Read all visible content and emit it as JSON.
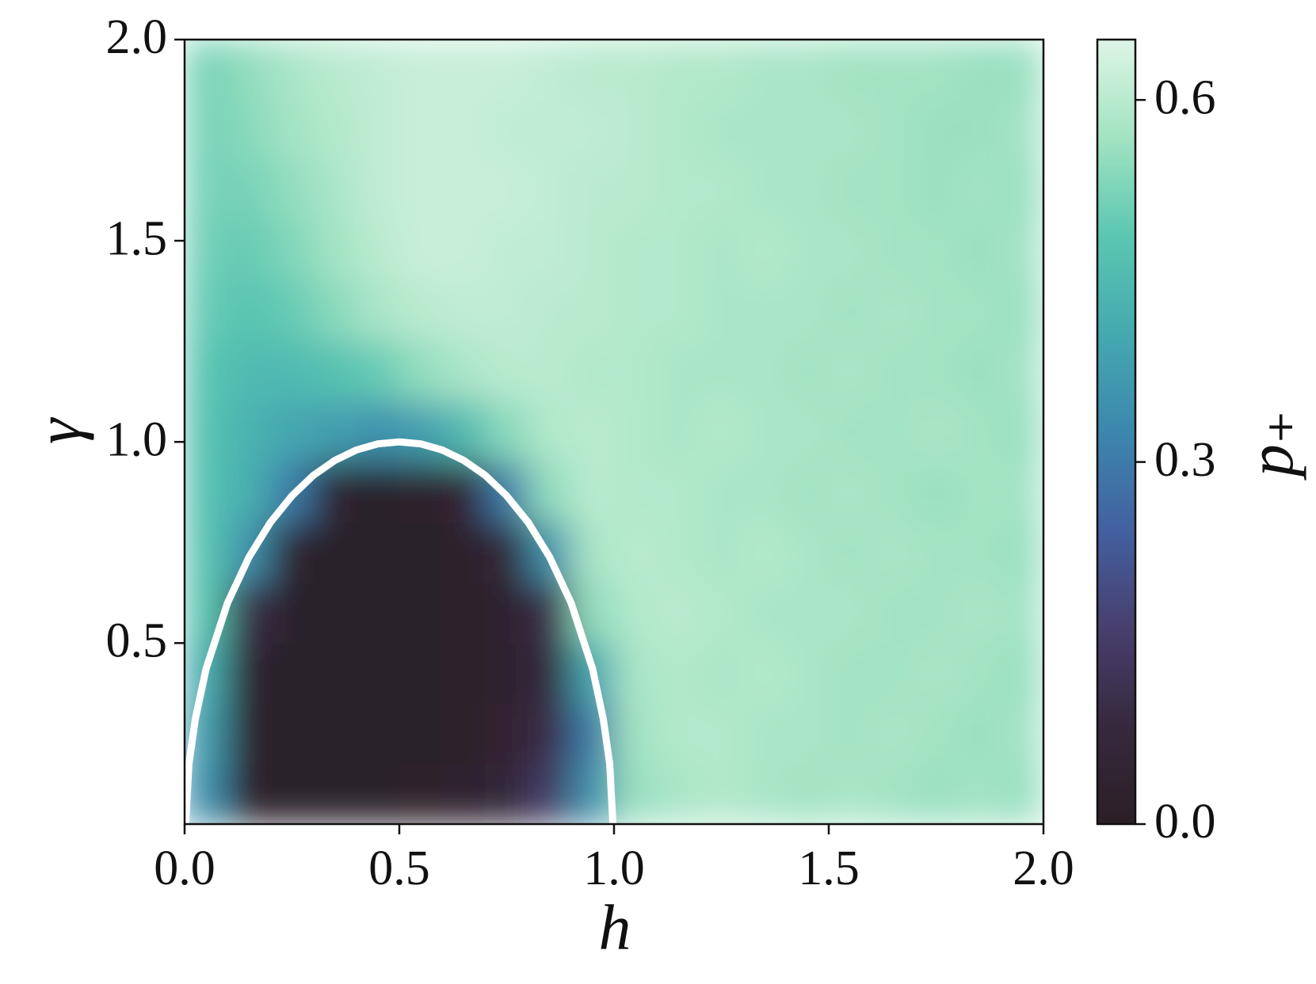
{
  "chart_data": {
    "type": "heatmap",
    "x_label": "h",
    "y_label": "γ",
    "colorbar_label": "p₊",
    "xlim": [
      0,
      2
    ],
    "ylim": [
      0.05,
      2
    ],
    "clim": [
      0,
      0.65
    ],
    "xticks": [
      {
        "value": 0,
        "label": "0.0"
      },
      {
        "value": 0.5,
        "label": "0.5"
      },
      {
        "value": 1,
        "label": "1.0"
      },
      {
        "value": 1.5,
        "label": "1.5"
      },
      {
        "value": 2,
        "label": "2.0"
      }
    ],
    "yticks": [
      {
        "value": 0.5,
        "label": "0.5"
      },
      {
        "value": 1,
        "label": "1.0"
      },
      {
        "value": 1.5,
        "label": "1.5"
      },
      {
        "value": 2,
        "label": "2.0"
      }
    ],
    "cticks": [
      {
        "value": 0,
        "label": "0.0"
      },
      {
        "value": 0.3,
        "label": "0.3"
      },
      {
        "value": 0.6,
        "label": "0.6"
      }
    ],
    "colormap": [
      "#2b1f26",
      "#36293d",
      "#483f6e",
      "#4360a0",
      "#3c87ad",
      "#45a9b0",
      "#5bc7b1",
      "#a2e3c2",
      "#def5e5"
    ],
    "x": [
      0.05,
      0.15,
      0.25,
      0.35,
      0.45,
      0.55,
      0.65,
      0.75,
      0.85,
      0.95,
      1.05,
      1.15,
      1.25,
      1.35,
      1.45,
      1.55,
      1.65,
      1.75,
      1.85,
      1.95
    ],
    "y": [
      0.125,
      0.275,
      0.425,
      0.575,
      0.725,
      0.875,
      1.025,
      1.175,
      1.325,
      1.475,
      1.625,
      1.775,
      1.925
    ],
    "z": [
      [
        0.35,
        0.02,
        0.01,
        0.01,
        0.01,
        0.02,
        0.03,
        0.06,
        0.15,
        0.35,
        0.56,
        0.58,
        0.59,
        0.58,
        0.57,
        0.58,
        0.57,
        0.56,
        0.57,
        0.56
      ],
      [
        0.38,
        0.02,
        0.01,
        0.01,
        0.01,
        0.01,
        0.02,
        0.04,
        0.1,
        0.3,
        0.57,
        0.59,
        0.59,
        0.58,
        0.58,
        0.57,
        0.58,
        0.57,
        0.56,
        0.57
      ],
      [
        0.42,
        0.03,
        0.01,
        0.01,
        0.01,
        0.01,
        0.02,
        0.03,
        0.08,
        0.4,
        0.58,
        0.59,
        0.58,
        0.59,
        0.58,
        0.57,
        0.57,
        0.58,
        0.57,
        0.56
      ],
      [
        0.48,
        0.1,
        0.01,
        0.01,
        0.01,
        0.01,
        0.02,
        0.03,
        0.1,
        0.55,
        0.59,
        0.6,
        0.59,
        0.58,
        0.58,
        0.58,
        0.57,
        0.57,
        0.58,
        0.57
      ],
      [
        0.48,
        0.35,
        0.03,
        0.01,
        0.01,
        0.01,
        0.02,
        0.05,
        0.35,
        0.58,
        0.6,
        0.59,
        0.58,
        0.59,
        0.58,
        0.57,
        0.58,
        0.57,
        0.57,
        0.56
      ],
      [
        0.47,
        0.42,
        0.3,
        0.03,
        0.01,
        0.02,
        0.04,
        0.3,
        0.55,
        0.6,
        0.59,
        0.59,
        0.58,
        0.58,
        0.57,
        0.58,
        0.57,
        0.56,
        0.57,
        0.57
      ],
      [
        0.47,
        0.43,
        0.4,
        0.38,
        0.35,
        0.38,
        0.45,
        0.54,
        0.59,
        0.6,
        0.59,
        0.58,
        0.59,
        0.58,
        0.58,
        0.57,
        0.57,
        0.58,
        0.57,
        0.56
      ],
      [
        0.48,
        0.45,
        0.45,
        0.47,
        0.5,
        0.55,
        0.58,
        0.6,
        0.6,
        0.59,
        0.59,
        0.58,
        0.58,
        0.58,
        0.57,
        0.58,
        0.57,
        0.57,
        0.56,
        0.57
      ],
      [
        0.5,
        0.48,
        0.5,
        0.54,
        0.58,
        0.6,
        0.61,
        0.61,
        0.6,
        0.6,
        0.59,
        0.59,
        0.58,
        0.58,
        0.58,
        0.57,
        0.58,
        0.57,
        0.57,
        0.56
      ],
      [
        0.51,
        0.5,
        0.53,
        0.57,
        0.6,
        0.62,
        0.62,
        0.61,
        0.61,
        0.6,
        0.59,
        0.59,
        0.58,
        0.59,
        0.58,
        0.58,
        0.57,
        0.57,
        0.56,
        0.57
      ],
      [
        0.52,
        0.52,
        0.55,
        0.58,
        0.61,
        0.62,
        0.62,
        0.62,
        0.61,
        0.6,
        0.6,
        0.59,
        0.59,
        0.58,
        0.58,
        0.57,
        0.57,
        0.56,
        0.57,
        0.56
      ],
      [
        0.52,
        0.54,
        0.57,
        0.59,
        0.61,
        0.62,
        0.62,
        0.61,
        0.61,
        0.61,
        0.6,
        0.59,
        0.58,
        0.58,
        0.58,
        0.58,
        0.57,
        0.56,
        0.56,
        0.57
      ],
      [
        0.52,
        0.55,
        0.58,
        0.6,
        0.61,
        0.62,
        0.62,
        0.62,
        0.61,
        0.6,
        0.6,
        0.59,
        0.59,
        0.58,
        0.58,
        0.57,
        0.57,
        0.57,
        0.56,
        0.56
      ]
    ],
    "curve": {
      "type": "line",
      "color": "#ffffff",
      "x": [
        0,
        0.01,
        0.025,
        0.05,
        0.1,
        0.15,
        0.2,
        0.25,
        0.3,
        0.35,
        0.4,
        0.45,
        0.5,
        0.55,
        0.6,
        0.65,
        0.7,
        0.75,
        0.8,
        0.85,
        0.9,
        0.95,
        0.975,
        0.99,
        1
      ],
      "values": [
        0,
        0.199,
        0.312,
        0.436,
        0.6,
        0.714,
        0.8,
        0.866,
        0.917,
        0.954,
        0.98,
        0.995,
        1,
        0.995,
        0.98,
        0.954,
        0.917,
        0.866,
        0.8,
        0.714,
        0.6,
        0.436,
        0.312,
        0.199,
        0
      ]
    }
  }
}
